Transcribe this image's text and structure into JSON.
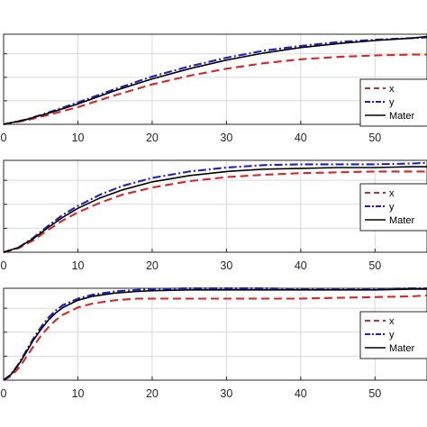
{
  "chart_data": [
    {
      "type": "line",
      "xlim": [
        0,
        57
      ],
      "ylim": [
        0,
        1.15
      ],
      "grid": true,
      "legend_position": "right",
      "xticks": [
        "0",
        "10",
        "20",
        "30",
        "40",
        "50"
      ],
      "series": [
        {
          "name": "x",
          "color": "#d62728",
          "dash": "dashed",
          "x": [
            0,
            3,
            6,
            10,
            15,
            20,
            25,
            30,
            35,
            40,
            45,
            50,
            55,
            57
          ],
          "y": [
            0,
            0.05,
            0.12,
            0.22,
            0.37,
            0.51,
            0.62,
            0.71,
            0.78,
            0.83,
            0.86,
            0.88,
            0.89,
            0.89
          ]
        },
        {
          "name": "y",
          "color": "#1f1fbf",
          "dash": "dashdot",
          "x": [
            0,
            3,
            6,
            10,
            15,
            20,
            25,
            30,
            35,
            40,
            45,
            50,
            55,
            57
          ],
          "y": [
            0,
            0.06,
            0.15,
            0.28,
            0.45,
            0.61,
            0.74,
            0.85,
            0.94,
            1.0,
            1.05,
            1.08,
            1.1,
            1.11
          ]
        },
        {
          "name": "Mater",
          "color": "#000000",
          "dash": "solid",
          "x": [
            0,
            3,
            6,
            10,
            15,
            20,
            25,
            30,
            35,
            40,
            45,
            50,
            55,
            57
          ],
          "y": [
            0,
            0.06,
            0.14,
            0.26,
            0.43,
            0.58,
            0.71,
            0.82,
            0.91,
            0.98,
            1.03,
            1.07,
            1.1,
            1.12
          ]
        }
      ]
    },
    {
      "type": "line",
      "xlim": [
        0,
        57
      ],
      "ylim": [
        0,
        1.15
      ],
      "grid": true,
      "legend_position": "right",
      "xticks": [
        "0",
        "10",
        "20",
        "30",
        "40",
        "50"
      ],
      "series": [
        {
          "name": "x",
          "color": "#d62728",
          "dash": "dashed",
          "x": [
            0,
            2,
            4,
            6,
            8,
            10,
            13,
            16,
            20,
            25,
            30,
            35,
            40,
            45,
            50,
            55,
            57
          ],
          "y": [
            0,
            0.05,
            0.15,
            0.28,
            0.4,
            0.5,
            0.62,
            0.72,
            0.81,
            0.89,
            0.94,
            0.97,
            0.99,
            1.0,
            1.01,
            1.01,
            1.01
          ]
        },
        {
          "name": "y",
          "color": "#1f1fbf",
          "dash": "dashdot",
          "x": [
            0,
            2,
            4,
            6,
            8,
            10,
            13,
            16,
            20,
            25,
            30,
            35,
            40,
            45,
            50,
            55,
            57
          ],
          "y": [
            0,
            0.06,
            0.18,
            0.33,
            0.47,
            0.58,
            0.72,
            0.83,
            0.93,
            1.01,
            1.06,
            1.09,
            1.1,
            1.1,
            1.1,
            1.11,
            1.12
          ]
        },
        {
          "name": "Mater",
          "color": "#000000",
          "dash": "solid",
          "x": [
            0,
            2,
            4,
            6,
            8,
            10,
            13,
            16,
            20,
            25,
            30,
            35,
            40,
            45,
            50,
            55,
            57
          ],
          "y": [
            0,
            0.06,
            0.17,
            0.31,
            0.44,
            0.55,
            0.68,
            0.78,
            0.88,
            0.96,
            1.01,
            1.04,
            1.05,
            1.06,
            1.06,
            1.07,
            1.07
          ]
        }
      ]
    },
    {
      "type": "line",
      "xlim": [
        0,
        57
      ],
      "ylim": [
        0,
        1.15
      ],
      "grid": true,
      "legend_position": "right",
      "xticks": [
        "0",
        "10",
        "20",
        "30",
        "40",
        "50"
      ],
      "series": [
        {
          "name": "x",
          "color": "#d62728",
          "dash": "dashed",
          "x": [
            0,
            1,
            2,
            3,
            4,
            5,
            6,
            7,
            8,
            10,
            12,
            15,
            18,
            20,
            25,
            30,
            35,
            40,
            45,
            50,
            55,
            57
          ],
          "y": [
            0,
            0.05,
            0.15,
            0.28,
            0.42,
            0.55,
            0.66,
            0.75,
            0.82,
            0.91,
            0.96,
            1.0,
            1.02,
            1.02,
            1.02,
            1.02,
            1.02,
            1.02,
            1.03,
            1.04,
            1.05,
            1.06
          ]
        },
        {
          "name": "y",
          "color": "#1f1fbf",
          "dash": "dashdot",
          "x": [
            0,
            1,
            2,
            3,
            4,
            5,
            6,
            7,
            8,
            10,
            12,
            15,
            18,
            20,
            25,
            30,
            35,
            40,
            45,
            50,
            55,
            57
          ],
          "y": [
            0,
            0.07,
            0.2,
            0.36,
            0.52,
            0.66,
            0.78,
            0.87,
            0.94,
            1.02,
            1.07,
            1.11,
            1.13,
            1.14,
            1.15,
            1.15,
            1.15,
            1.14,
            1.14,
            1.14,
            1.15,
            1.15
          ]
        },
        {
          "name": "Mater",
          "color": "#000000",
          "dash": "solid",
          "x": [
            0,
            1,
            2,
            3,
            4,
            5,
            6,
            7,
            8,
            10,
            12,
            15,
            18,
            20,
            25,
            30,
            35,
            40,
            45,
            50,
            55,
            57
          ],
          "y": [
            0,
            0.07,
            0.19,
            0.34,
            0.5,
            0.63,
            0.75,
            0.84,
            0.91,
            1.0,
            1.05,
            1.09,
            1.11,
            1.12,
            1.13,
            1.13,
            1.13,
            1.13,
            1.13,
            1.13,
            1.14,
            1.14
          ]
        }
      ]
    }
  ]
}
